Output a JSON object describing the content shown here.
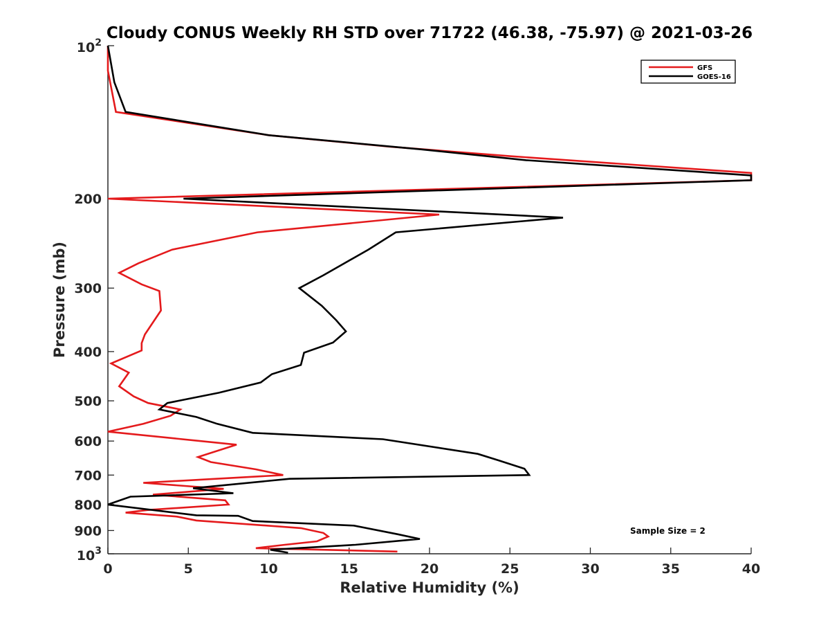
{
  "chart_data": {
    "type": "line",
    "title": "Cloudy CONUS Weekly RH STD over 71722 (46.38, -75.97) @ 2021-03-26",
    "xlabel": "Relative Humidity (%)",
    "ylabel": "Pressure (mb)",
    "xlim": [
      0,
      40
    ],
    "ylim": [
      100,
      1000
    ],
    "yscale": "log",
    "yreversed": true,
    "x_ticks": [
      0,
      5,
      10,
      15,
      20,
      25,
      30,
      35,
      40
    ],
    "x_tick_labels": [
      "0",
      "5",
      "10",
      "15",
      "20",
      "25",
      "30",
      "35",
      "40"
    ],
    "y_ticks": [
      200,
      300,
      400,
      500,
      600,
      700,
      800,
      900
    ],
    "y_tick_labels": [
      "200",
      "300",
      "400",
      "500",
      "600",
      "700",
      "800",
      "900"
    ],
    "y_tick_base": "10",
    "y_end_ticks": [
      {
        "value": 100,
        "base": "10",
        "exponent": "2"
      },
      {
        "value": 1000,
        "base": "10",
        "exponent": "3"
      }
    ],
    "legend_position": "top-right",
    "annotation": "Sample Size = 2",
    "grid": false,
    "series": [
      {
        "name": "GFS",
        "color": "#e41a1c",
        "points": [
          [
            18.0,
            990
          ],
          [
            9.2,
            975
          ],
          [
            11.0,
            960
          ],
          [
            13.0,
            945
          ],
          [
            13.7,
            925
          ],
          [
            13.4,
            910
          ],
          [
            12.0,
            890
          ],
          [
            5.5,
            860
          ],
          [
            4.3,
            845
          ],
          [
            1.1,
            830
          ],
          [
            2.5,
            820
          ],
          [
            7.5,
            800
          ],
          [
            7.3,
            785
          ],
          [
            2.8,
            765
          ],
          [
            7.2,
            745
          ],
          [
            2.2,
            725
          ],
          [
            10.9,
            700
          ],
          [
            9.2,
            682
          ],
          [
            6.4,
            660
          ],
          [
            5.6,
            645
          ],
          [
            8.0,
            610
          ],
          [
            0.0,
            575
          ],
          [
            2.2,
            555
          ],
          [
            3.9,
            535
          ],
          [
            4.5,
            520
          ],
          [
            2.5,
            505
          ],
          [
            1.6,
            490
          ],
          [
            0.7,
            468
          ],
          [
            1.3,
            440
          ],
          [
            0.2,
            422
          ],
          [
            2.1,
            398
          ],
          [
            2.1,
            385
          ],
          [
            2.3,
            370
          ],
          [
            3.3,
            332
          ],
          [
            3.2,
            304
          ],
          [
            2.1,
            295
          ],
          [
            0.7,
            280
          ],
          [
            1.9,
            268
          ],
          [
            4.0,
            252
          ],
          [
            9.3,
            233
          ],
          [
            20.6,
            215
          ],
          [
            0.0,
            200
          ],
          [
            40.0,
            184
          ],
          [
            40.0,
            178
          ],
          [
            25.0,
            165
          ],
          [
            17.5,
            158
          ],
          [
            10.0,
            150
          ],
          [
            0.5,
            135
          ],
          [
            0.0,
            112
          ],
          [
            0.0,
            100
          ]
        ]
      },
      {
        "name": "GOES-16",
        "color": "#000000",
        "points": [
          [
            11.2,
            995
          ],
          [
            10.1,
            982
          ],
          [
            15.4,
            960
          ],
          [
            19.4,
            935
          ],
          [
            18.0,
            915
          ],
          [
            15.3,
            880
          ],
          [
            9.0,
            862
          ],
          [
            8.1,
            842
          ],
          [
            5.5,
            840
          ],
          [
            0.0,
            800
          ],
          [
            1.4,
            772
          ],
          [
            7.8,
            760
          ],
          [
            5.3,
            743
          ],
          [
            11.3,
            712
          ],
          [
            26.2,
            700
          ],
          [
            25.9,
            680
          ],
          [
            24.3,
            655
          ],
          [
            23.0,
            636
          ],
          [
            17.1,
            595
          ],
          [
            9.0,
            578
          ],
          [
            6.8,
            555
          ],
          [
            5.5,
            538
          ],
          [
            3.2,
            520
          ],
          [
            3.7,
            505
          ],
          [
            6.9,
            482
          ],
          [
            9.5,
            460
          ],
          [
            10.2,
            443
          ],
          [
            12.0,
            425
          ],
          [
            12.2,
            402
          ],
          [
            14.0,
            384
          ],
          [
            14.8,
            365
          ],
          [
            14.2,
            347
          ],
          [
            13.3,
            325
          ],
          [
            11.9,
            300
          ],
          [
            13.4,
            283
          ],
          [
            16.2,
            252
          ],
          [
            17.9,
            233
          ],
          [
            28.3,
            218
          ],
          [
            4.7,
            200
          ],
          [
            40.0,
            184
          ],
          [
            40.0,
            180
          ],
          [
            26.0,
            168
          ],
          [
            19.5,
            160
          ],
          [
            10.0,
            150
          ],
          [
            1.1,
            135
          ],
          [
            0.4,
            118
          ],
          [
            0.0,
            100
          ]
        ]
      }
    ]
  }
}
